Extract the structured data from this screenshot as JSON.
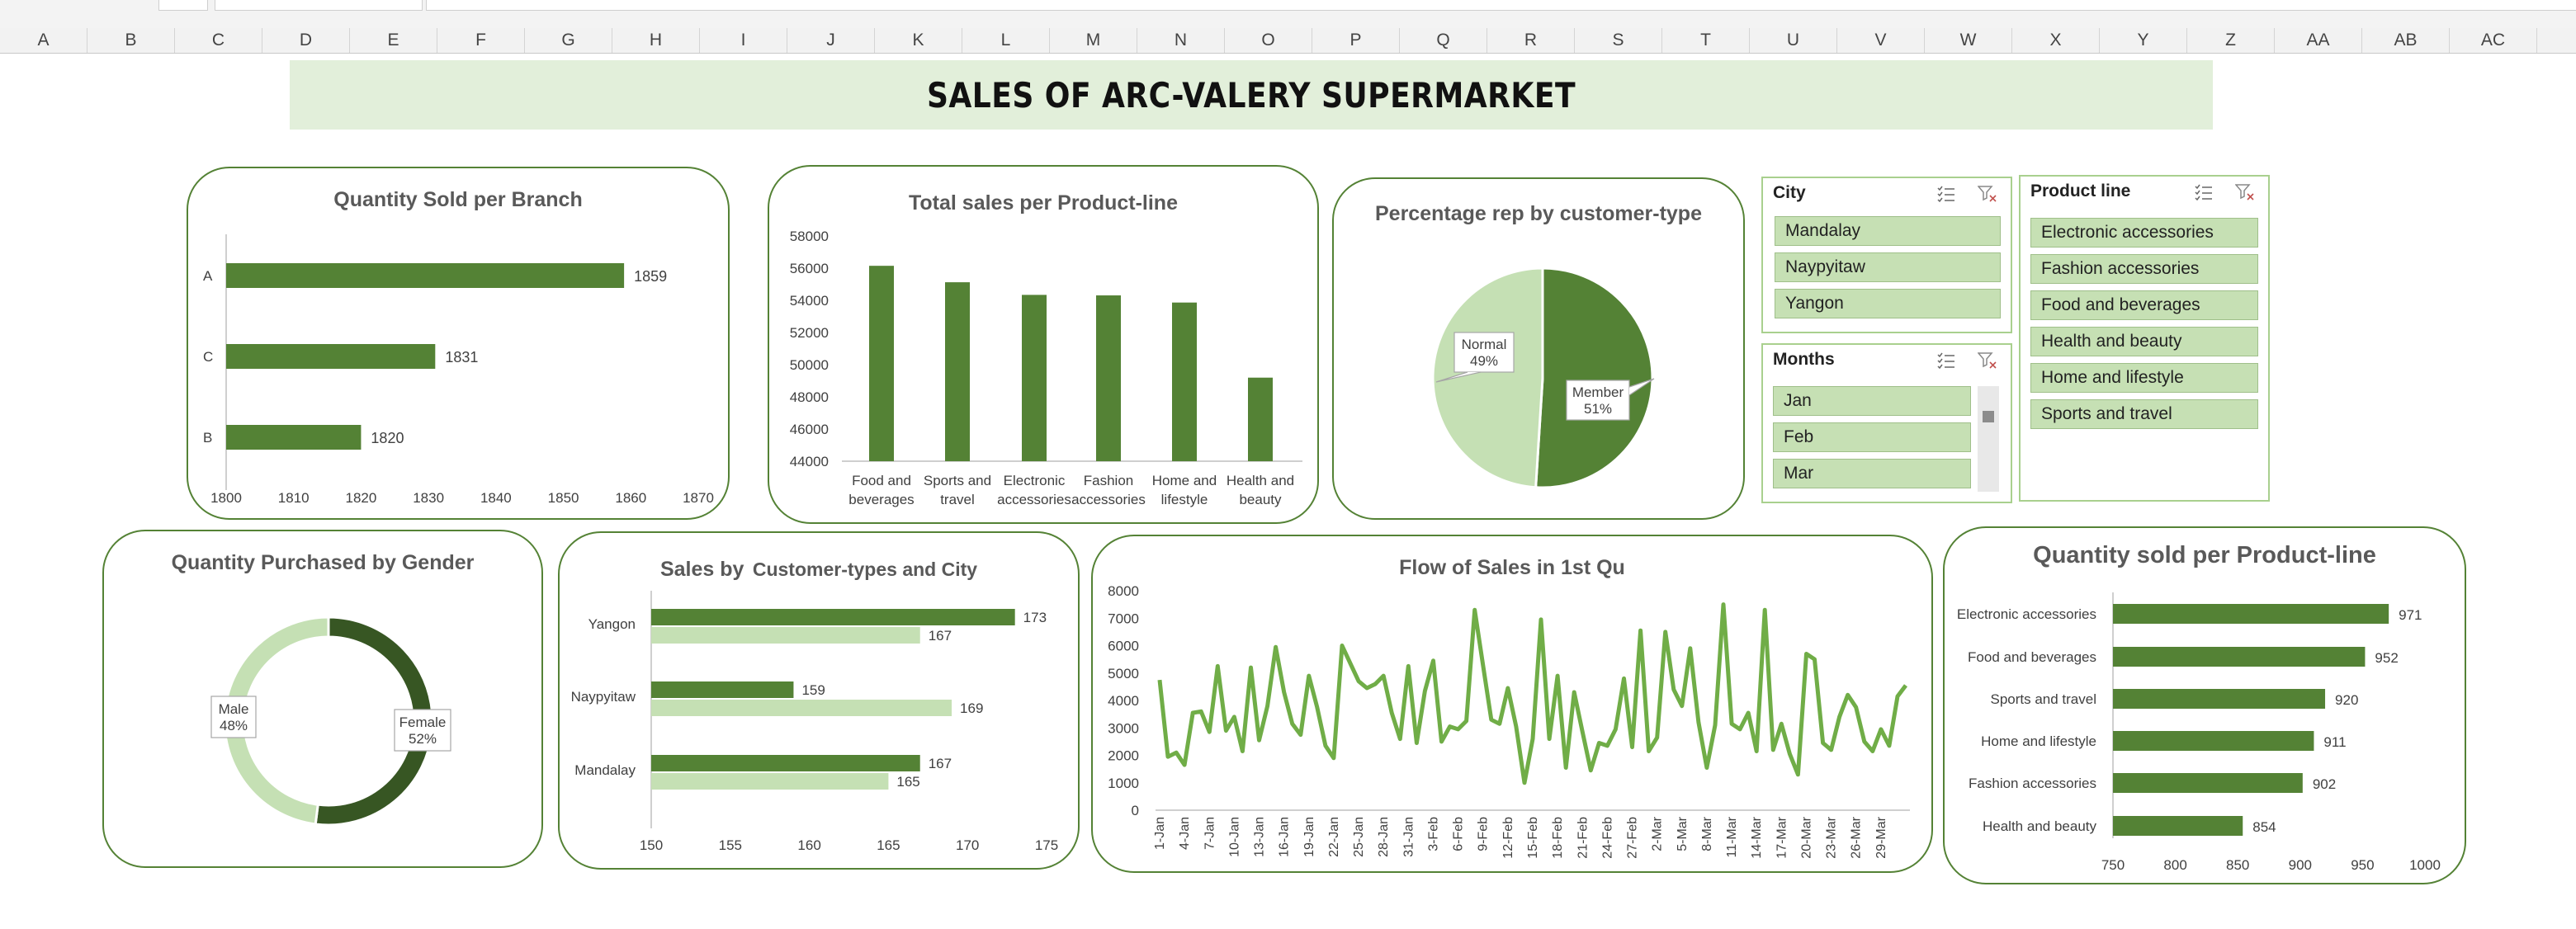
{
  "sheet": {
    "columns": [
      "A",
      "B",
      "C",
      "D",
      "E",
      "F",
      "G",
      "H",
      "I",
      "J",
      "K",
      "L",
      "M",
      "N",
      "O",
      "P",
      "Q",
      "R",
      "S",
      "T",
      "U",
      "V",
      "W",
      "X",
      "Y",
      "Z",
      "AA",
      "AB",
      "AC"
    ]
  },
  "dashboard": {
    "title": "SALES OF ARC-VALERY SUPERMARKET"
  },
  "colors": {
    "dark_green": "#548235",
    "darker_green": "#375623",
    "light_green": "#c5e0b4",
    "title_band": "#e2efda"
  },
  "charts": {
    "branch": {
      "title": "Quantity Sold per Branch",
      "chart_data": {
        "type": "bar",
        "orientation": "horizontal",
        "categories": [
          "A",
          "C",
          "B"
        ],
        "values": [
          1859,
          1831,
          1820
        ],
        "xlim": [
          1800,
          1870
        ],
        "xticks": [
          "1800",
          "1810",
          "1820",
          "1830",
          "1840",
          "1850",
          "1860",
          "1870"
        ]
      }
    },
    "productline_sales": {
      "title": "Total sales per Product-line",
      "chart_data": {
        "type": "bar",
        "categories": [
          [
            "Food and",
            "beverages"
          ],
          [
            "Sports and",
            "travel"
          ],
          [
            "Electronic",
            "accessories"
          ],
          [
            "Fashion",
            "accessories"
          ],
          [
            "Home and",
            "lifestyle"
          ],
          [
            "Health and",
            "beauty"
          ]
        ],
        "values": [
          56145,
          55123,
          54338,
          54306,
          53862,
          49194
        ],
        "ylim": [
          44000,
          58000
        ],
        "yticks": [
          "44000",
          "46000",
          "48000",
          "50000",
          "52000",
          "54000",
          "56000",
          "58000"
        ]
      }
    },
    "customer_type": {
      "title": "Percentage rep by customer-type",
      "chart_data": {
        "type": "pie",
        "slices": [
          {
            "name": "Member",
            "pct_label": "51%",
            "value": 51
          },
          {
            "name": "Normal",
            "pct_label": "49%",
            "value": 49
          }
        ]
      }
    },
    "gender": {
      "title": "Quantity Purchased by Gender",
      "chart_data": {
        "type": "pie",
        "variant": "doughnut",
        "slices": [
          {
            "name": "Female",
            "pct_label": "52%",
            "value": 52
          },
          {
            "name": "Male",
            "pct_label": "48%",
            "value": 48
          }
        ]
      }
    },
    "customer_city": {
      "title_main": "Sales by",
      "title_rest": "Customer-types and City",
      "chart_data": {
        "type": "bar",
        "orientation": "horizontal",
        "categories": [
          "Yangon",
          "Naypyitaw",
          "Mandalay"
        ],
        "series": [
          {
            "values": [
              173,
              159,
              167
            ]
          },
          {
            "values": [
              167,
              169,
              165
            ]
          }
        ],
        "xlim": [
          150,
          175
        ],
        "xticks": [
          "150",
          "155",
          "160",
          "165",
          "170",
          "175"
        ]
      }
    },
    "flow": {
      "title": "Flow of Sales in 1st Qu",
      "chart_data": {
        "type": "line",
        "ylim": [
          0,
          8000
        ],
        "yticks": [
          "0",
          "1000",
          "2000",
          "3000",
          "4000",
          "5000",
          "6000",
          "7000",
          "8000"
        ],
        "xticks": [
          "1-Jan",
          "4-Jan",
          "7-Jan",
          "10-Jan",
          "13-Jan",
          "16-Jan",
          "19-Jan",
          "22-Jan",
          "25-Jan",
          "28-Jan",
          "31-Jan",
          "3-Feb",
          "6-Feb",
          "9-Feb",
          "12-Feb",
          "15-Feb",
          "18-Feb",
          "21-Feb",
          "24-Feb",
          "27-Feb",
          "2-Mar",
          "5-Mar",
          "8-Mar",
          "11-Mar",
          "14-Mar",
          "17-Mar",
          "20-Mar",
          "23-Mar",
          "26-Mar",
          "29-Mar"
        ],
        "values": [
          4750,
          1950,
          2100,
          1650,
          3550,
          3600,
          2850,
          5250,
          2900,
          3400,
          2150,
          5200,
          2550,
          3800,
          5950,
          4300,
          3150,
          2750,
          4900,
          3750,
          2350,
          1900,
          6000,
          5350,
          4700,
          4450,
          4600,
          4900,
          3550,
          2600,
          5250,
          2450,
          4350,
          5450,
          2500,
          3050,
          2950,
          3250,
          7300,
          5300,
          3300,
          3150,
          4450,
          3050,
          1000,
          2600,
          6950,
          2600,
          4900,
          1550,
          4300,
          2850,
          1450,
          2450,
          2350,
          2950,
          4800,
          2300,
          6550,
          2150,
          2650,
          6500,
          4400,
          3800,
          5900,
          3200,
          1550,
          3100,
          7500,
          3150,
          2950,
          3550,
          2150,
          7300,
          2200,
          3150,
          2050,
          1300,
          5700,
          5500,
          2450,
          2200,
          3400,
          4200,
          3750,
          2500,
          2150,
          2950,
          2350,
          4150,
          4550
        ]
      }
    },
    "productline_qty": {
      "title": "Quantity sold per Product-line",
      "chart_data": {
        "type": "bar",
        "orientation": "horizontal",
        "categories": [
          "Electronic accessories",
          "Food and beverages",
          "Sports and travel",
          "Home and lifestyle",
          "Fashion accessories",
          "Health and beauty"
        ],
        "values": [
          971,
          952,
          920,
          911,
          902,
          854
        ],
        "xlim": [
          750,
          1000
        ],
        "xticks": [
          "750",
          "800",
          "850",
          "900",
          "950",
          "1000"
        ]
      }
    }
  },
  "slicers": {
    "city": {
      "title": "City",
      "items": [
        "Mandalay",
        "Naypyitaw",
        "Yangon"
      ]
    },
    "months": {
      "title": "Months",
      "items": [
        "Jan",
        "Feb",
        "Mar"
      ]
    },
    "product_line": {
      "title": "Product line",
      "items": [
        "Electronic accessories",
        "Fashion accessories",
        "Food and beverages",
        "Health and beauty",
        "Home and lifestyle",
        "Sports and travel"
      ]
    }
  }
}
